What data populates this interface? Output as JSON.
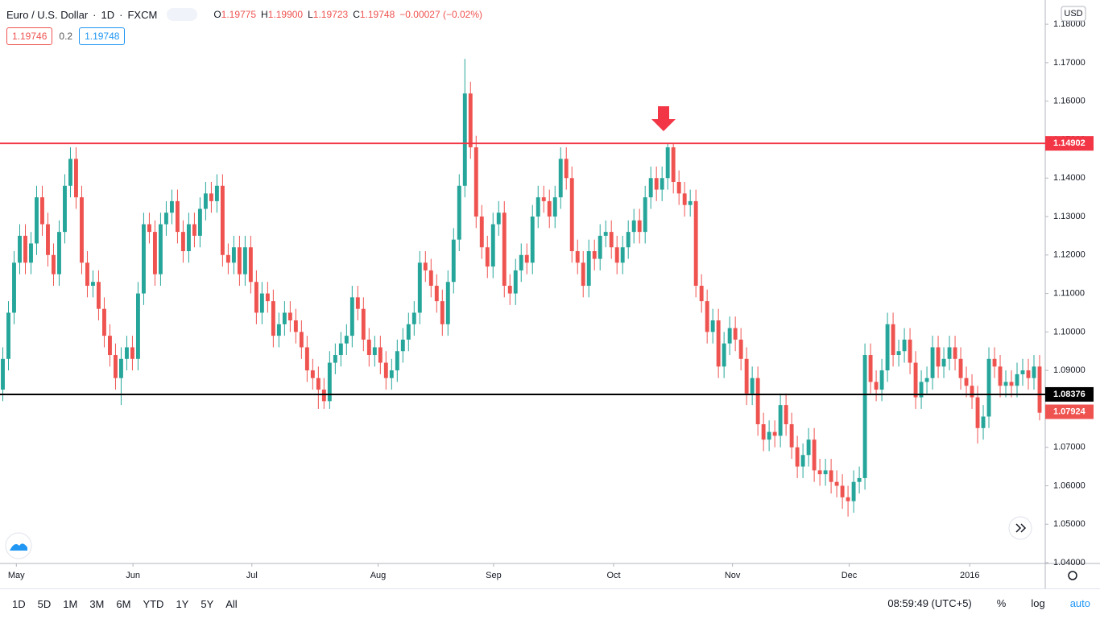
{
  "chart_data": {
    "type": "candlestick",
    "symbol": "Euro / U.S. Dollar",
    "interval": "1D",
    "source": "FXCM",
    "ohlc_legend": [
      {
        "label": "O",
        "value": "1.19775"
      },
      {
        "label": "H",
        "value": "1.19900"
      },
      {
        "label": "L",
        "value": "1.19723"
      },
      {
        "label": "C",
        "value": "1.19748"
      }
    ],
    "change": "−0.00027 (−0.02%)",
    "bid": "1.19746",
    "spread": "0.2",
    "ask": "1.19748",
    "currency": "USD",
    "up_color": "#26a69a",
    "down_color": "#ef5350",
    "open": [
      1.085,
      1.093,
      1.105,
      1.118,
      1.125,
      1.118,
      1.123,
      1.135,
      1.128,
      1.12,
      1.115,
      1.126,
      1.138,
      1.145,
      1.135,
      1.118,
      1.112,
      1.113,
      1.106,
      1.099,
      1.094,
      1.088,
      1.093,
      1.096,
      1.093,
      1.11,
      1.128,
      1.126,
      1.115,
      1.128,
      1.131,
      1.134,
      1.126,
      1.121,
      1.128,
      1.125,
      1.132,
      1.136,
      1.134,
      1.138,
      1.12,
      1.118,
      1.122,
      1.115,
      1.122,
      1.113,
      1.105,
      1.11,
      1.108,
      1.099,
      1.102,
      1.105,
      1.103,
      1.1,
      1.096,
      1.09,
      1.088,
      1.085,
      1.082,
      1.092,
      1.094,
      1.097,
      1.099,
      1.109,
      1.106,
      1.098,
      1.094,
      1.096,
      1.092,
      1.088,
      1.09,
      1.095,
      1.098,
      1.102,
      1.105,
      1.118,
      1.116,
      1.112,
      1.108,
      1.102,
      1.113,
      1.124,
      1.138,
      1.162,
      1.148,
      1.13,
      1.122,
      1.117,
      1.128,
      1.131,
      1.112,
      1.11,
      1.116,
      1.12,
      1.118,
      1.13,
      1.135,
      1.134,
      1.13,
      1.135,
      1.145,
      1.14,
      1.121,
      1.118,
      1.112,
      1.121,
      1.119,
      1.125,
      1.126,
      1.122,
      1.118,
      1.122,
      1.126,
      1.129,
      1.126,
      1.135,
      1.14,
      1.137,
      1.14,
      1.148,
      1.139,
      1.136,
      1.133,
      1.134,
      1.112,
      1.108,
      1.1,
      1.103,
      1.091,
      1.097,
      1.101,
      1.098,
      1.093,
      1.084,
      1.088,
      1.076,
      1.072,
      1.074,
      1.073,
      1.081,
      1.076,
      1.07,
      1.065,
      1.068,
      1.072,
      1.064,
      1.063,
      1.064,
      1.061,
      1.06,
      1.057,
      1.056,
      1.061,
      1.062,
      1.094,
      1.087,
      1.085,
      1.09,
      1.102,
      1.094,
      1.095,
      1.098,
      1.092,
      1.083,
      1.087,
      1.088,
      1.096,
      1.091,
      1.093,
      1.096,
      1.093,
      1.088,
      1.086,
      1.083,
      1.075,
      1.078,
      1.093,
      1.091,
      1.086,
      1.087,
      1.086,
      1.089,
      1.09,
      1.088,
      1.091
    ],
    "high": [
      1.096,
      1.108,
      1.121,
      1.128,
      1.128,
      1.126,
      1.138,
      1.138,
      1.131,
      1.123,
      1.129,
      1.141,
      1.148,
      1.148,
      1.138,
      1.121,
      1.116,
      1.116,
      1.109,
      1.102,
      1.097,
      1.096,
      1.099,
      1.099,
      1.113,
      1.131,
      1.131,
      1.129,
      1.131,
      1.134,
      1.137,
      1.137,
      1.129,
      1.131,
      1.131,
      1.135,
      1.139,
      1.139,
      1.141,
      1.141,
      1.123,
      1.125,
      1.125,
      1.125,
      1.125,
      1.116,
      1.113,
      1.113,
      1.111,
      1.105,
      1.108,
      1.108,
      1.106,
      1.103,
      1.099,
      1.093,
      1.091,
      1.088,
      1.095,
      1.097,
      1.1,
      1.102,
      1.112,
      1.112,
      1.109,
      1.101,
      1.099,
      1.099,
      1.095,
      1.093,
      1.098,
      1.101,
      1.105,
      1.108,
      1.121,
      1.121,
      1.119,
      1.115,
      1.111,
      1.116,
      1.127,
      1.141,
      1.171,
      1.165,
      1.151,
      1.133,
      1.125,
      1.131,
      1.134,
      1.134,
      1.115,
      1.119,
      1.123,
      1.123,
      1.133,
      1.138,
      1.138,
      1.137,
      1.138,
      1.148,
      1.148,
      1.143,
      1.124,
      1.121,
      1.124,
      1.124,
      1.128,
      1.129,
      1.129,
      1.125,
      1.125,
      1.129,
      1.132,
      1.132,
      1.138,
      1.143,
      1.143,
      1.143,
      1.149,
      1.149,
      1.142,
      1.139,
      1.137,
      1.137,
      1.115,
      1.111,
      1.106,
      1.106,
      1.1,
      1.104,
      1.104,
      1.101,
      1.096,
      1.091,
      1.091,
      1.079,
      1.077,
      1.077,
      1.084,
      1.084,
      1.079,
      1.073,
      1.071,
      1.075,
      1.075,
      1.067,
      1.067,
      1.067,
      1.064,
      1.063,
      1.06,
      1.064,
      1.065,
      1.097,
      1.097,
      1.09,
      1.093,
      1.105,
      1.105,
      1.098,
      1.101,
      1.101,
      1.095,
      1.09,
      1.091,
      1.099,
      1.099,
      1.096,
      1.099,
      1.099,
      1.096,
      1.091,
      1.089,
      1.086,
      1.081,
      1.096,
      1.096,
      1.094,
      1.09,
      1.09,
      1.092,
      1.093,
      1.093,
      1.094,
      1.094
    ],
    "low": [
      1.082,
      1.09,
      1.102,
      1.115,
      1.115,
      1.115,
      1.12,
      1.125,
      1.117,
      1.112,
      1.112,
      1.123,
      1.135,
      1.132,
      1.115,
      1.109,
      1.109,
      1.103,
      1.096,
      1.091,
      1.085,
      1.081,
      1.09,
      1.09,
      1.09,
      1.107,
      1.123,
      1.112,
      1.112,
      1.125,
      1.128,
      1.123,
      1.118,
      1.118,
      1.122,
      1.122,
      1.129,
      1.131,
      1.131,
      1.117,
      1.115,
      1.115,
      1.112,
      1.112,
      1.11,
      1.102,
      1.102,
      1.105,
      1.096,
      1.096,
      1.099,
      1.1,
      1.097,
      1.093,
      1.087,
      1.085,
      1.08,
      1.08,
      1.08,
      1.089,
      1.091,
      1.094,
      1.096,
      1.103,
      1.095,
      1.091,
      1.091,
      1.089,
      1.085,
      1.085,
      1.087,
      1.092,
      1.095,
      1.099,
      1.102,
      1.113,
      1.109,
      1.105,
      1.099,
      1.099,
      1.11,
      1.121,
      1.135,
      1.145,
      1.127,
      1.119,
      1.114,
      1.114,
      1.125,
      1.109,
      1.107,
      1.107,
      1.113,
      1.115,
      1.115,
      1.127,
      1.131,
      1.127,
      1.127,
      1.132,
      1.137,
      1.118,
      1.115,
      1.109,
      1.109,
      1.116,
      1.116,
      1.122,
      1.119,
      1.115,
      1.115,
      1.119,
      1.123,
      1.123,
      1.123,
      1.132,
      1.134,
      1.134,
      1.137,
      1.136,
      1.133,
      1.13,
      1.13,
      1.109,
      1.105,
      1.097,
      1.097,
      1.088,
      1.088,
      1.094,
      1.095,
      1.09,
      1.081,
      1.081,
      1.073,
      1.069,
      1.069,
      1.07,
      1.07,
      1.073,
      1.067,
      1.062,
      1.062,
      1.065,
      1.061,
      1.06,
      1.06,
      1.058,
      1.057,
      1.054,
      1.052,
      1.053,
      1.058,
      1.059,
      1.084,
      1.082,
      1.082,
      1.087,
      1.091,
      1.091,
      1.092,
      1.089,
      1.08,
      1.08,
      1.084,
      1.085,
      1.088,
      1.088,
      1.09,
      1.09,
      1.085,
      1.083,
      1.08,
      1.071,
      1.072,
      1.075,
      1.088,
      1.083,
      1.083,
      1.083,
      1.083,
      1.086,
      1.085,
      1.085,
      1.077
    ],
    "close": [
      1.093,
      1.105,
      1.118,
      1.125,
      1.118,
      1.123,
      1.135,
      1.128,
      1.12,
      1.115,
      1.126,
      1.138,
      1.145,
      1.135,
      1.118,
      1.112,
      1.113,
      1.106,
      1.099,
      1.094,
      1.088,
      1.093,
      1.096,
      1.093,
      1.11,
      1.128,
      1.126,
      1.115,
      1.128,
      1.131,
      1.134,
      1.126,
      1.121,
      1.128,
      1.125,
      1.132,
      1.136,
      1.134,
      1.138,
      1.12,
      1.118,
      1.122,
      1.115,
      1.122,
      1.113,
      1.105,
      1.11,
      1.108,
      1.099,
      1.102,
      1.105,
      1.103,
      1.1,
      1.096,
      1.09,
      1.088,
      1.085,
      1.082,
      1.092,
      1.094,
      1.097,
      1.099,
      1.109,
      1.106,
      1.098,
      1.094,
      1.096,
      1.092,
      1.088,
      1.09,
      1.095,
      1.098,
      1.102,
      1.105,
      1.118,
      1.116,
      1.112,
      1.108,
      1.102,
      1.113,
      1.124,
      1.138,
      1.162,
      1.148,
      1.13,
      1.122,
      1.117,
      1.128,
      1.131,
      1.112,
      1.11,
      1.116,
      1.12,
      1.118,
      1.13,
      1.135,
      1.134,
      1.13,
      1.135,
      1.145,
      1.14,
      1.121,
      1.118,
      1.112,
      1.121,
      1.119,
      1.125,
      1.126,
      1.122,
      1.118,
      1.122,
      1.126,
      1.129,
      1.126,
      1.135,
      1.14,
      1.137,
      1.14,
      1.148,
      1.139,
      1.136,
      1.133,
      1.134,
      1.112,
      1.108,
      1.1,
      1.103,
      1.091,
      1.097,
      1.101,
      1.098,
      1.093,
      1.084,
      1.088,
      1.076,
      1.072,
      1.074,
      1.073,
      1.081,
      1.076,
      1.07,
      1.065,
      1.068,
      1.072,
      1.064,
      1.063,
      1.064,
      1.061,
      1.06,
      1.057,
      1.056,
      1.061,
      1.062,
      1.094,
      1.087,
      1.085,
      1.09,
      1.102,
      1.094,
      1.095,
      1.098,
      1.092,
      1.083,
      1.087,
      1.088,
      1.096,
      1.091,
      1.093,
      1.096,
      1.093,
      1.088,
      1.086,
      1.083,
      1.075,
      1.078,
      1.093,
      1.091,
      1.086,
      1.087,
      1.086,
      1.089,
      1.09,
      1.088,
      1.091,
      1.079
    ],
    "xlim": [
      -0.5,
      185
    ],
    "xticks": [
      {
        "value": 2.4,
        "label": "May"
      },
      {
        "value": 23.1,
        "label": "Jun"
      },
      {
        "value": 44.2,
        "label": "Jul"
      },
      {
        "value": 66.6,
        "label": "Aug"
      },
      {
        "value": 87.1,
        "label": "Sep"
      },
      {
        "value": 108.4,
        "label": "Oct"
      },
      {
        "value": 129.5,
        "label": "Nov"
      },
      {
        "value": 150.2,
        "label": "Dec"
      },
      {
        "value": 171.6,
        "label": "2016"
      }
    ],
    "ylim": [
      1.0398,
      1.1863
    ],
    "yticks": [
      {
        "value": 1.04,
        "label": "1.04000"
      },
      {
        "value": 1.05,
        "label": "1.05000"
      },
      {
        "value": 1.06,
        "label": "1.06000"
      },
      {
        "value": 1.07,
        "label": "1.07000"
      },
      {
        "value": 1.08,
        "label": "1.08000"
      },
      {
        "value": 1.09,
        "label": "1.09000"
      },
      {
        "value": 1.1,
        "label": "1.10000"
      },
      {
        "value": 1.11,
        "label": "1.11000"
      },
      {
        "value": 1.12,
        "label": "1.12000"
      },
      {
        "value": 1.13,
        "label": "1.13000"
      },
      {
        "value": 1.14,
        "label": "1.14000"
      },
      {
        "value": 1.15,
        "label": "1.15000"
      },
      {
        "value": 1.16,
        "label": "1.16000"
      },
      {
        "value": 1.17,
        "label": "1.17000"
      },
      {
        "value": 1.18,
        "label": "1.18000"
      }
    ],
    "levels": [
      {
        "value": 1.14902,
        "label": "1.14902",
        "color": "#f23645"
      },
      {
        "value": 1.08376,
        "label": "1.08376",
        "color": "#000000"
      }
    ],
    "last_price": {
      "value": 1.07924,
      "label": "1.07924",
      "color": "#ef5350"
    }
  },
  "toolbar": {
    "ranges": [
      "1D",
      "5D",
      "1M",
      "3M",
      "6M",
      "YTD",
      "1Y",
      "5Y",
      "All"
    ],
    "clock": "08:59:49 (UTC+5)",
    "percent": "%",
    "log": "log",
    "auto": "auto"
  }
}
